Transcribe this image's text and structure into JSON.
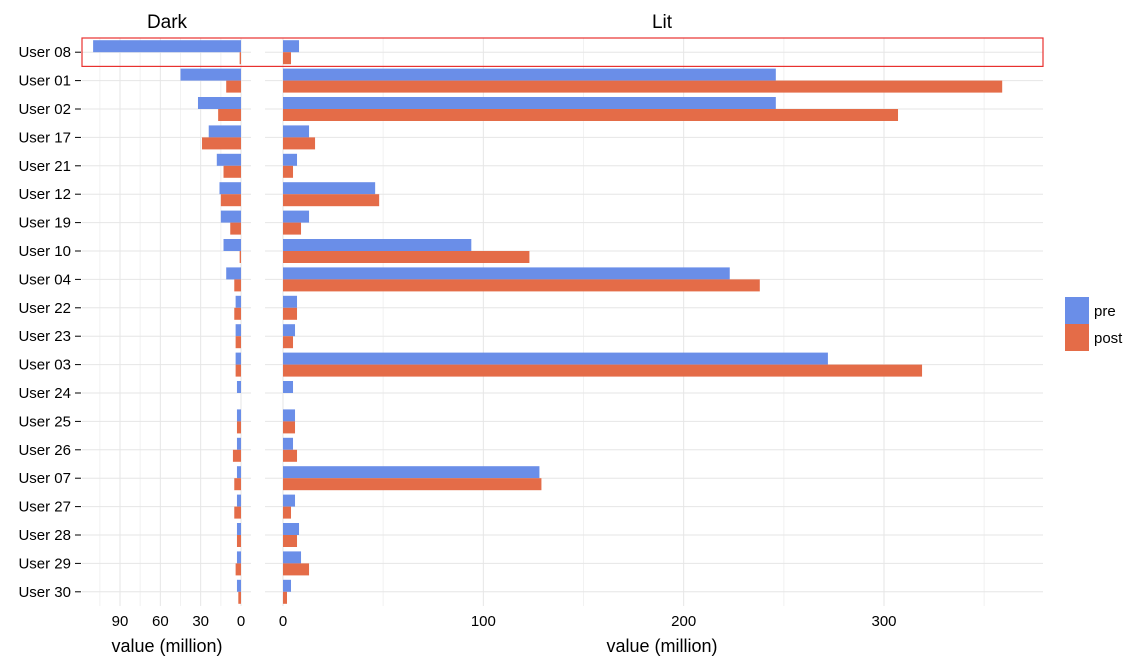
{
  "chart_data": {
    "type": "bar",
    "orientation": "horizontal",
    "grid": true,
    "legend_position": "right",
    "categories": [
      "User 08",
      "User 01",
      "User 02",
      "User 17",
      "User 21",
      "User 12",
      "User 19",
      "User 10",
      "User 04",
      "User 22",
      "User 23",
      "User 03",
      "User 24",
      "User 25",
      "User 26",
      "User 07",
      "User 27",
      "User 28",
      "User 29",
      "User 30"
    ],
    "highlighted_category": "User 08",
    "highlight_color": "#e8312f",
    "series_colors": {
      "pre": "#6a8ee8",
      "post": "#e46c48"
    },
    "panels": [
      {
        "title": "Dark",
        "xlabel": "value (million)",
        "reversed": true,
        "xlim": [
          0,
          116
        ],
        "x_ticks": [
          90,
          60,
          30,
          0
        ],
        "series": [
          {
            "name": "pre",
            "values": [
              110,
              45,
              32,
              24,
              18,
              16,
              15,
              13,
              11,
              4,
              4,
              4,
              3,
              3,
              3,
              3,
              3,
              3,
              3,
              3
            ]
          },
          {
            "name": "post",
            "values": [
              1,
              11,
              17,
              29,
              13,
              15,
              8,
              1,
              5,
              5,
              4,
              4,
              0,
              3,
              6,
              5,
              5,
              3,
              4,
              2
            ]
          }
        ]
      },
      {
        "title": "Lit",
        "xlabel": "value (million)",
        "reversed": false,
        "xlim": [
          0,
          377
        ],
        "x_ticks": [
          0,
          100,
          200,
          300
        ],
        "series": [
          {
            "name": "pre",
            "values": [
              8,
              246,
              246,
              13,
              7,
              46,
              13,
              94,
              223,
              7,
              6,
              272,
              5,
              6,
              5,
              128,
              6,
              8,
              9,
              4
            ]
          },
          {
            "name": "post",
            "values": [
              4,
              359,
              307,
              16,
              5,
              48,
              9,
              123,
              238,
              7,
              5,
              319,
              0,
              6,
              7,
              129,
              4,
              7,
              13,
              2
            ]
          }
        ]
      }
    ]
  },
  "legend": {
    "items": [
      {
        "key": "pre",
        "label": "pre"
      },
      {
        "key": "post",
        "label": "post"
      }
    ]
  }
}
